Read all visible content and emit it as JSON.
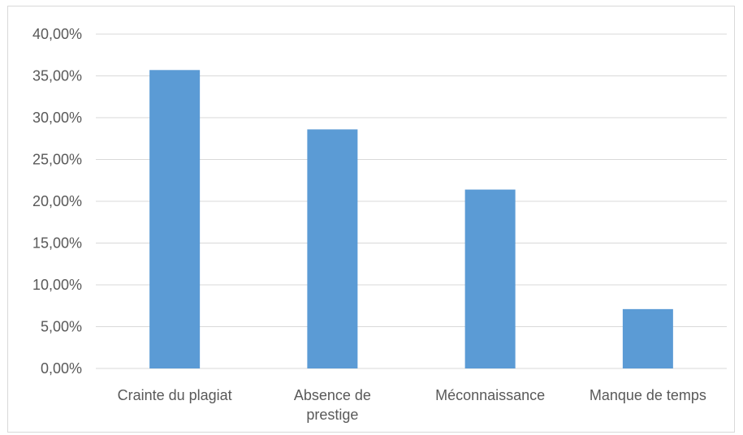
{
  "chart_data": {
    "type": "bar",
    "categories": [
      [
        "Crainte du plagiat"
      ],
      [
        "Absence de",
        "prestige"
      ],
      [
        "Méconnaissance"
      ],
      [
        "Manque de temps"
      ]
    ],
    "values": [
      35.7,
      28.6,
      21.4,
      7.1
    ],
    "ylim": [
      0,
      40
    ],
    "y_ticks": [
      0,
      5,
      10,
      15,
      20,
      25,
      30,
      35,
      40
    ],
    "y_tick_labels": [
      "0,00%",
      "5,00%",
      "10,00%",
      "15,00%",
      "20,00%",
      "25,00%",
      "30,00%",
      "35,00%",
      "40,00%"
    ],
    "title": "",
    "xlabel": "",
    "ylabel": "",
    "grid": true,
    "legend": "none",
    "colors": {
      "bar": "#5b9bd5",
      "grid": "#d9d9d9",
      "axis": "#d9d9d9",
      "text": "#595959"
    }
  }
}
